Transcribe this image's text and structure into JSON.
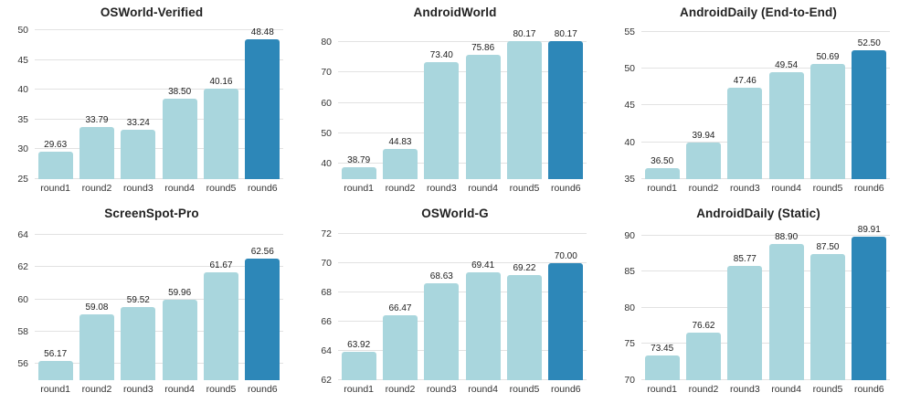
{
  "page": {
    "background": "#ffffff"
  },
  "palette": {
    "bar_color": "#a9d6dd",
    "highlight_color": "#2d87b8",
    "gridline_color": "#e2e2e2",
    "tick_label_color": "#333333",
    "value_label_color": "#1c1c1c",
    "title_color": "#222222"
  },
  "categories": [
    "round1",
    "round2",
    "round3",
    "round4",
    "round5",
    "round6"
  ],
  "chart_data": [
    {
      "type": "bar",
      "title": "OSWorld-Verified",
      "categories": [
        "round1",
        "round2",
        "round3",
        "round4",
        "round5",
        "round6"
      ],
      "values": [
        29.63,
        33.79,
        33.24,
        38.5,
        40.16,
        48.48
      ],
      "value_labels": [
        "29.63",
        "33.79",
        "33.24",
        "38.50",
        "40.16",
        "48.48"
      ],
      "yticks": [
        25,
        30,
        35,
        40,
        45,
        50
      ],
      "ylim": [
        25,
        50.5
      ],
      "grid": true,
      "highlight_index": 5
    },
    {
      "type": "bar",
      "title": "AndroidWorld",
      "categories": [
        "round1",
        "round2",
        "round3",
        "round4",
        "round5",
        "round6"
      ],
      "values": [
        38.79,
        44.83,
        73.4,
        75.86,
        80.17,
        80.17
      ],
      "value_labels": [
        "38.79",
        "44.83",
        "73.40",
        "75.86",
        "80.17",
        "80.17"
      ],
      "yticks": [
        40,
        50,
        60,
        70,
        80
      ],
      "ylim": [
        35,
        84.8
      ],
      "grid": true,
      "highlight_index": 5
    },
    {
      "type": "bar",
      "title": "AndroidDaily (End-to-End)",
      "categories": [
        "round1",
        "round2",
        "round3",
        "round4",
        "round5",
        "round6"
      ],
      "values": [
        36.5,
        39.94,
        47.46,
        49.54,
        50.69,
        52.5
      ],
      "value_labels": [
        "36.50",
        "39.94",
        "47.46",
        "49.54",
        "50.69",
        "52.50"
      ],
      "yticks": [
        35,
        40,
        45,
        50,
        55
      ],
      "ylim": [
        35,
        55.6
      ],
      "grid": true,
      "highlight_index": 5
    },
    {
      "type": "bar",
      "title": "ScreenSpot-Pro",
      "categories": [
        "round1",
        "round2",
        "round3",
        "round4",
        "round5",
        "round6"
      ],
      "values": [
        56.17,
        59.08,
        59.52,
        59.96,
        61.67,
        62.56
      ],
      "value_labels": [
        "56.17",
        "59.08",
        "59.52",
        "59.96",
        "61.67",
        "62.56"
      ],
      "yticks": [
        56,
        58,
        60,
        62,
        64
      ],
      "ylim": [
        55,
        64.4
      ],
      "grid": true,
      "highlight_index": 5
    },
    {
      "type": "bar",
      "title": "OSWorld-G",
      "categories": [
        "round1",
        "round2",
        "round3",
        "round4",
        "round5",
        "round6"
      ],
      "values": [
        63.92,
        66.47,
        68.63,
        69.41,
        69.22,
        70.0
      ],
      "value_labels": [
        "63.92",
        "66.47",
        "68.63",
        "69.41",
        "69.22",
        "70.00"
      ],
      "yticks": [
        62,
        64,
        66,
        68,
        70,
        72
      ],
      "ylim": [
        62,
        72.4
      ],
      "grid": true,
      "highlight_index": 5
    },
    {
      "type": "bar",
      "title": "AndroidDaily (Static)",
      "categories": [
        "round1",
        "round2",
        "round3",
        "round4",
        "round5",
        "round6"
      ],
      "values": [
        73.45,
        76.62,
        85.77,
        88.9,
        87.5,
        89.91
      ],
      "value_labels": [
        "73.45",
        "76.62",
        "85.77",
        "88.90",
        "87.50",
        "89.91"
      ],
      "yticks": [
        70,
        75,
        80,
        85,
        90
      ],
      "ylim": [
        70,
        91.0
      ],
      "grid": true,
      "highlight_index": 5
    }
  ]
}
